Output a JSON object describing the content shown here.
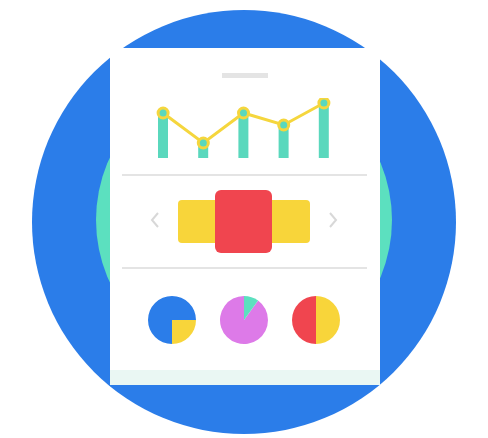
{
  "chart_data": [
    {
      "type": "line",
      "values": [
        45,
        15,
        45,
        33,
        55
      ],
      "ylim": [
        0,
        60
      ],
      "color": "#f5d63d",
      "marker": "circle",
      "tick_labels": false
    },
    {
      "type": "pie",
      "values": [
        75,
        25
      ],
      "colors": [
        "#2b7de9",
        "#f8d53a"
      ]
    },
    {
      "type": "pie",
      "values": [
        90,
        10
      ],
      "colors": [
        "#dd7ae8",
        "#5ce0bf"
      ]
    },
    {
      "type": "pie",
      "values": [
        50,
        50
      ],
      "colors": [
        "#f0454f",
        "#f8d53a"
      ]
    }
  ]
}
